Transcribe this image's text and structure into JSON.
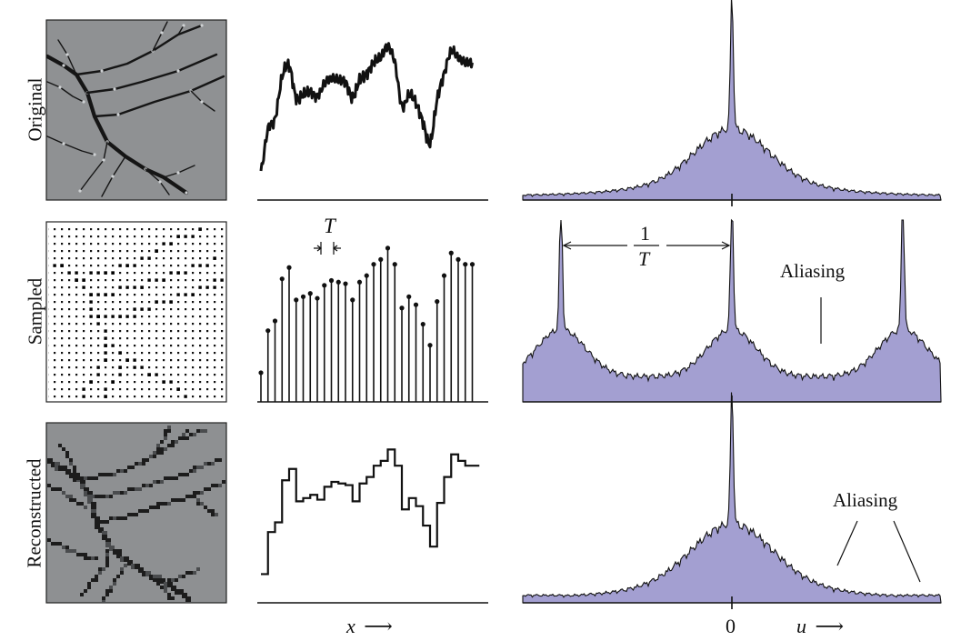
{
  "rows": [
    {
      "label": "Original"
    },
    {
      "label": "Sampled"
    },
    {
      "label": "Reconstructed"
    }
  ],
  "annotations": {
    "period_symbol": "T",
    "freq_numerator": "1",
    "freq_denominator": "T",
    "aliasing_sampled": "Aliasing",
    "aliasing_reconstructed": "Aliasing"
  },
  "axes": {
    "spatial_label": "x",
    "freq_label": "u",
    "freq_origin_tick": "0",
    "arrow_glyph": "⟶"
  },
  "colors": {
    "spectrum_fill": "#a39fd1",
    "spectrum_line": "#111111",
    "image_bg": "#8f9193",
    "branch": "#151515"
  },
  "signal": {
    "samples": [
      0.18,
      0.44,
      0.5,
      0.76,
      0.83,
      0.63,
      0.65,
      0.67,
      0.64,
      0.72,
      0.75,
      0.74,
      0.73,
      0.63,
      0.74,
      0.78,
      0.85,
      0.88,
      0.95,
      0.85,
      0.58,
      0.65,
      0.6,
      0.48,
      0.35,
      0.62,
      0.78,
      0.92,
      0.88,
      0.85,
      0.85
    ]
  }
}
